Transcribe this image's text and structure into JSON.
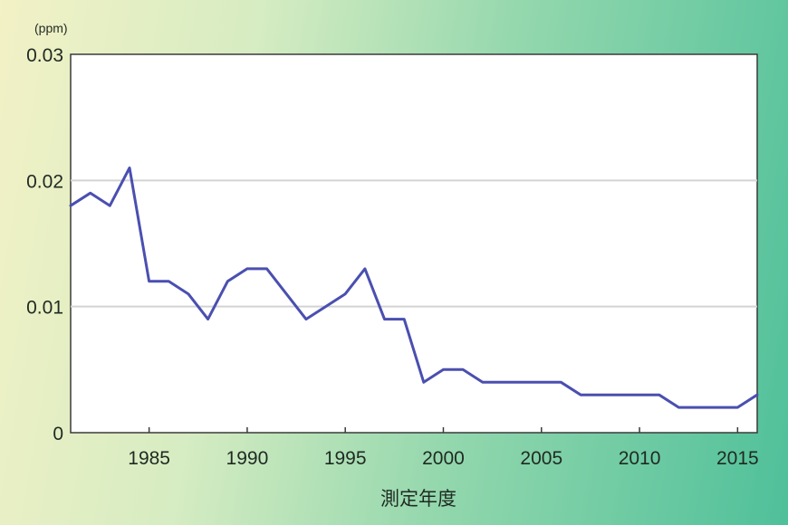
{
  "chart_data": {
    "type": "line",
    "title": "",
    "xlabel": "測定年度",
    "ylabel": "",
    "unit_label": "(ppm)",
    "xlim": [
      1981,
      2016
    ],
    "ylim": [
      0,
      0.03
    ],
    "x_ticks": [
      "1985",
      "1990",
      "1995",
      "2000",
      "2005",
      "2010",
      "2015"
    ],
    "y_ticks": [
      "0",
      "0.01",
      "0.02",
      "0.03"
    ],
    "grid": true,
    "legend": "none",
    "series": [
      {
        "color": "#4a4fb0",
        "x": [
          1981,
          1982,
          1983,
          1984,
          1985,
          1986,
          1987,
          1988,
          1989,
          1990,
          1991,
          1992,
          1993,
          1994,
          1995,
          1996,
          1997,
          1998,
          1999,
          2000,
          2001,
          2002,
          2003,
          2004,
          2005,
          2006,
          2007,
          2008,
          2009,
          2010,
          2011,
          2012,
          2013,
          2014,
          2015,
          2016
        ],
        "y": [
          0.018,
          0.019,
          0.018,
          0.021,
          0.012,
          0.012,
          0.011,
          0.009,
          0.012,
          0.013,
          0.013,
          0.011,
          0.009,
          0.01,
          0.011,
          0.013,
          0.009,
          0.009,
          0.004,
          0.005,
          0.005,
          0.004,
          0.004,
          0.004,
          0.004,
          0.004,
          0.003,
          0.003,
          0.003,
          0.003,
          0.003,
          0.002,
          0.002,
          0.002,
          0.002,
          0.003
        ]
      }
    ]
  }
}
